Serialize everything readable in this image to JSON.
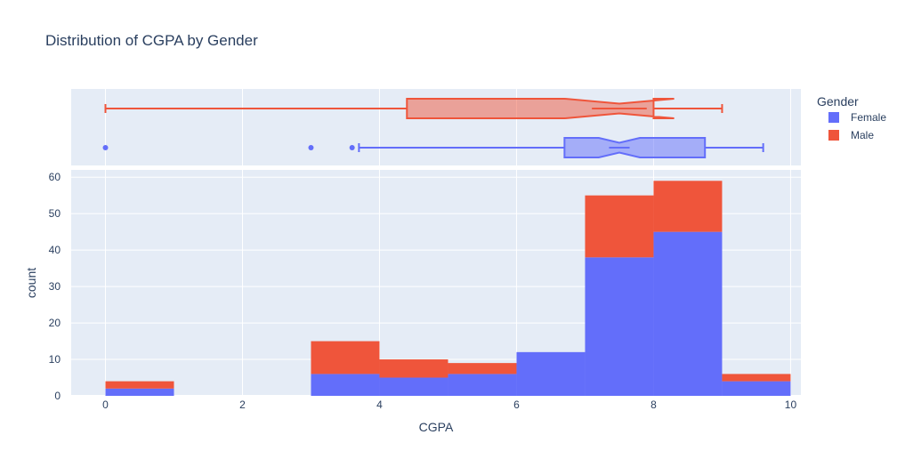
{
  "chart_data": {
    "type": "bar",
    "subtype": "stacked histogram with marginal notched box plots",
    "title": "Distribution of CGPA by Gender",
    "xlabel": "CGPA",
    "ylabel": "count",
    "xlim": [
      -0.5,
      10.15
    ],
    "ylim": [
      0,
      62
    ],
    "xticks": [
      0,
      2,
      4,
      6,
      8,
      10
    ],
    "yticks": [
      0,
      10,
      20,
      30,
      40,
      50,
      60
    ],
    "grid": true,
    "legend": {
      "title": "Gender",
      "position": "top-right",
      "entries": [
        "Female",
        "Male"
      ]
    },
    "bins": [
      {
        "start": 0,
        "end": 1
      },
      {
        "start": 3,
        "end": 4
      },
      {
        "start": 4,
        "end": 5
      },
      {
        "start": 5,
        "end": 6
      },
      {
        "start": 6,
        "end": 7
      },
      {
        "start": 7,
        "end": 8
      },
      {
        "start": 8,
        "end": 9
      },
      {
        "start": 9,
        "end": 10
      }
    ],
    "series": [
      {
        "name": "Female",
        "color": "#636efa",
        "values": [
          2,
          6,
          5,
          6,
          12,
          38,
          45,
          4
        ]
      },
      {
        "name": "Male",
        "color": "#ef553b",
        "values": [
          2,
          9,
          5,
          3,
          0,
          17,
          14,
          2
        ]
      }
    ],
    "box_plots": [
      {
        "name": "Female",
        "color": "#636efa",
        "min": 3.7,
        "q1": 6.7,
        "median": 7.5,
        "q3": 8.75,
        "max": 9.6,
        "notch_low": 7.2,
        "notch_high": 7.8,
        "outliers": [
          0,
          3.0,
          3.6
        ]
      },
      {
        "name": "Male",
        "color": "#ef553b",
        "min": 0,
        "q1": 4.4,
        "median": 7.5,
        "q3": 8.0,
        "max": 9.0,
        "notch_low": 6.7,
        "notch_high": 8.3,
        "outliers": []
      }
    ]
  }
}
